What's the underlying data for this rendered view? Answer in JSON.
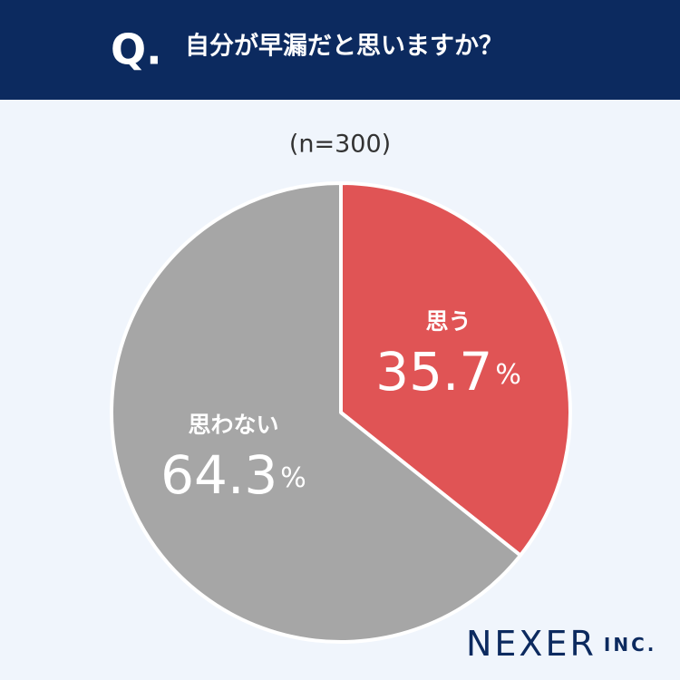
{
  "header_marker": "Q.",
  "chart_data": {
    "type": "pie",
    "title": "自分が早漏だと思いますか？",
    "subtitle": "(n=300)",
    "categories": [
      "思う",
      "思わない"
    ],
    "values": [
      35.7,
      64.3
    ],
    "value_labels": [
      "35.7%",
      "64.3%"
    ],
    "colors": [
      "#e05455",
      "#a6a6a6"
    ]
  },
  "footer": {
    "brand": "NEXER",
    "suffix": "INC."
  }
}
